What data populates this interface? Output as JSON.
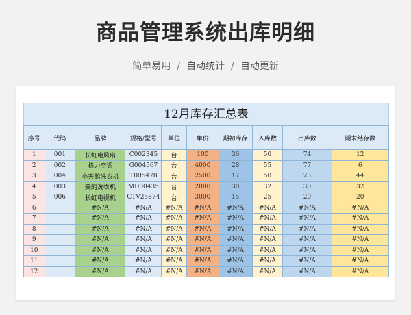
{
  "header": {
    "title": "商品管理系统出库明细",
    "subtitle_parts": [
      "简单易用",
      "自动统计",
      "自动更新"
    ],
    "separator": "/"
  },
  "sheet": {
    "title": "12月库存汇总表",
    "columns": [
      "序号",
      "代码",
      "品牌",
      "规格/型号",
      "单位",
      "单价",
      "期初库存",
      "入库数",
      "出库数",
      "期末结存数"
    ],
    "rows": [
      [
        "1",
        "001",
        "长虹电风扇",
        "C002345",
        "台",
        "100",
        "36",
        "50",
        "74",
        "12"
      ],
      [
        "2",
        "002",
        "格力空调",
        "G004567",
        "台",
        "4000",
        "28",
        "55",
        "77",
        "6"
      ],
      [
        "3",
        "004",
        "小天鹅洗衣机",
        "T005478",
        "台",
        "2500",
        "17",
        "50",
        "23",
        "44"
      ],
      [
        "4",
        "003",
        "美的洗衣机",
        "MD00435",
        "台",
        "2000",
        "30",
        "32",
        "30",
        "32"
      ],
      [
        "5",
        "006",
        "长虹电视机",
        "CTV25874",
        "台",
        "3000",
        "15",
        "25",
        "20",
        "20"
      ],
      [
        "6",
        "",
        "#N/A",
        "#N/A",
        "#N/A",
        "#N/A",
        "#N/A",
        "#N/A",
        "#N/A",
        "#N/A"
      ],
      [
        "7",
        "",
        "#N/A",
        "#N/A",
        "#N/A",
        "#N/A",
        "#N/A",
        "#N/A",
        "#N/A",
        "#N/A"
      ],
      [
        "8",
        "",
        "#N/A",
        "#N/A",
        "#N/A",
        "#N/A",
        "#N/A",
        "#N/A",
        "#N/A",
        "#N/A"
      ],
      [
        "9",
        "",
        "#N/A",
        "#N/A",
        "#N/A",
        "#N/A",
        "#N/A",
        "#N/A",
        "#N/A",
        "#N/A"
      ],
      [
        "10",
        "",
        "#N/A",
        "#N/A",
        "#N/A",
        "#N/A",
        "#N/A",
        "#N/A",
        "#N/A",
        "#N/A"
      ],
      [
        "11",
        "",
        "#N/A",
        "#N/A",
        "#N/A",
        "#N/A",
        "#N/A",
        "#N/A",
        "#N/A",
        "#N/A"
      ],
      [
        "12",
        "",
        "#N/A",
        "#N/A",
        "#N/A",
        "#N/A",
        "#N/A",
        "#N/A",
        "#N/A",
        "#N/A"
      ]
    ]
  },
  "colors": {
    "seq": "#fbe4e2",
    "code": "#dce9f6",
    "brand": "#a9d18e",
    "spec": "#dce9f6",
    "unit": "#fff2cc",
    "price": "#f4b183",
    "opening_stock": "#9dc3e6",
    "inbound": "#fff2cc",
    "outbound": "#bdd7ee",
    "closing_stock": "#ffe699",
    "header": "#dce9f6",
    "border": "#8eb4d6"
  }
}
